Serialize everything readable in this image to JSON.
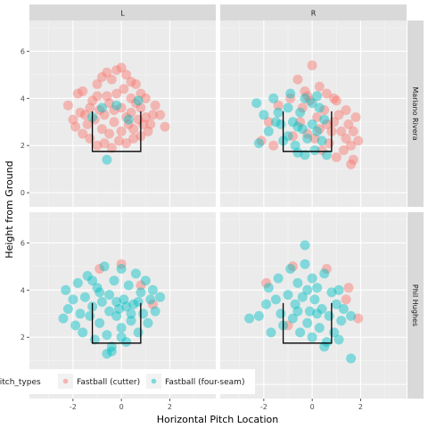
{
  "chart_data": {
    "type": "scatter",
    "facet_columns": [
      "L",
      "R"
    ],
    "facet_rows": [
      "Mariano Rivera",
      "Phil Hughes"
    ],
    "xlabel": "Horizontal Pitch Location",
    "ylabel": "Height from Ground",
    "xlim": [
      -3.8,
      3.9
    ],
    "ylim": [
      -0.6,
      7.3
    ],
    "x_ticks": [
      -2,
      0,
      2
    ],
    "y_ticks": [
      0,
      2,
      4,
      6
    ],
    "grid": true,
    "strike_zone": {
      "x": [
        -1.2,
        0.8
      ],
      "y": [
        1.75,
        3.45
      ]
    },
    "legend": {
      "title": "pitch_types",
      "position": "bottom",
      "entries": [
        {
          "label": "Fastball (cutter)",
          "color": "#F8766D"
        },
        {
          "label": "Fastball (four-seam)",
          "color": "#00BFC4"
        }
      ]
    },
    "series": [
      {
        "name": "Fastball (cutter)",
        "color": "#F8766D"
      },
      {
        "name": "Fastball (four-seam)",
        "color": "#00BFC4"
      }
    ],
    "panels": [
      {
        "col": "L",
        "row": "Mariano Rivera",
        "points": {
          "Fastball (cutter)": [
            [
              -2.2,
              3.7
            ],
            [
              -1.8,
              4.2
            ],
            [
              -1.6,
              4.3
            ],
            [
              -1.5,
              3.3
            ],
            [
              -1.2,
              3.9
            ],
            [
              -1.0,
              4.6
            ],
            [
              -0.8,
              4.9
            ],
            [
              -0.6,
              5.1
            ],
            [
              -0.4,
              4.8
            ],
            [
              -0.2,
              5.2
            ],
            [
              0.0,
              5.3
            ],
            [
              0.2,
              5.0
            ],
            [
              0.4,
              4.7
            ],
            [
              0.6,
              4.6
            ],
            [
              0.8,
              4.2
            ],
            [
              1.0,
              4.0
            ],
            [
              1.3,
              3.3
            ],
            [
              1.8,
              2.8
            ],
            [
              -1.9,
              2.8
            ],
            [
              -1.6,
              2.5
            ],
            [
              -1.3,
              2.3
            ],
            [
              -1.0,
              2.0
            ],
            [
              -0.7,
              2.1
            ],
            [
              -0.4,
              1.9
            ],
            [
              -0.1,
              2.2
            ],
            [
              0.2,
              2.1
            ],
            [
              0.5,
              2.3
            ],
            [
              0.8,
              2.4
            ],
            [
              1.1,
              2.6
            ],
            [
              -0.9,
              3.5
            ],
            [
              -0.5,
              3.8
            ],
            [
              0.0,
              3.6
            ],
            [
              0.4,
              3.4
            ],
            [
              0.7,
              3.1
            ],
            [
              -0.3,
              3.0
            ],
            [
              0.3,
              2.9
            ],
            [
              -1.4,
              2.9
            ],
            [
              1.0,
              3.2
            ],
            [
              -0.8,
              2.7
            ],
            [
              0.6,
              3.8
            ],
            [
              -0.2,
              4.2
            ],
            [
              0.1,
              4.4
            ],
            [
              -1.1,
              3.1
            ],
            [
              0.9,
              2.9
            ],
            [
              -0.5,
              2.5
            ],
            [
              0.5,
              2.7
            ],
            [
              -1.7,
              3.4
            ],
            [
              1.4,
              3.7
            ],
            [
              -0.6,
              4.1
            ],
            [
              0.2,
              3.2
            ],
            [
              -1.0,
              4.1
            ],
            [
              0.0,
              2.6
            ],
            [
              -0.3,
              3.5
            ],
            [
              0.4,
              4.0
            ],
            [
              1.2,
              2.9
            ],
            [
              -1.3,
              3.6
            ],
            [
              -0.7,
              3.3
            ],
            [
              0.8,
              3.6
            ],
            [
              -2.0,
              3.1
            ],
            [
              1.6,
              3.3
            ]
          ],
          "Fastball (four-seam)": [
            [
              -1.2,
              3.2
            ],
            [
              -0.6,
              1.4
            ],
            [
              0.7,
              3.9
            ],
            [
              -0.8,
              3.6
            ],
            [
              0.3,
              3.1
            ],
            [
              -0.2,
              3.7
            ]
          ]
        }
      },
      {
        "col": "R",
        "row": "Mariano Rivera",
        "points": {
          "Fastball (cutter)": [
            [
              -0.6,
              4.8
            ],
            [
              0.0,
              5.4
            ],
            [
              -0.3,
              4.3
            ],
            [
              0.3,
              4.5
            ],
            [
              0.6,
              4.2
            ],
            [
              1.0,
              3.9
            ],
            [
              1.4,
              3.5
            ],
            [
              1.8,
              3.2
            ],
            [
              1.7,
              2.6
            ],
            [
              1.6,
              2.0
            ],
            [
              1.7,
              1.4
            ],
            [
              1.6,
              1.2
            ],
            [
              1.3,
              1.8
            ],
            [
              1.0,
              1.5
            ],
            [
              0.7,
              2.1
            ],
            [
              0.4,
              1.8
            ],
            [
              0.1,
              2.3
            ],
            [
              -0.2,
              2.5
            ],
            [
              -0.5,
              3.0
            ],
            [
              -0.9,
              4.0
            ],
            [
              -1.4,
              3.7
            ],
            [
              -1.8,
              3.0
            ],
            [
              -2.1,
              2.2
            ],
            [
              -1.6,
              2.0
            ],
            [
              0.9,
              3.0
            ],
            [
              1.2,
              2.6
            ],
            [
              0.5,
              3.5
            ],
            [
              -0.1,
              3.9
            ],
            [
              0.8,
              2.6
            ],
            [
              1.5,
              2.9
            ],
            [
              0.2,
              3.2
            ],
            [
              -0.4,
              3.6
            ],
            [
              1.1,
              3.3
            ],
            [
              0.6,
              2.9
            ],
            [
              -0.8,
              2.4
            ],
            [
              1.4,
              2.3
            ],
            [
              0.3,
              2.7
            ],
            [
              -0.2,
              4.1
            ],
            [
              0.9,
              4.0
            ],
            [
              1.9,
              2.2
            ]
          ],
          "Fastball (four-seam)": [
            [
              -2.3,
              3.8
            ],
            [
              -2.0,
              3.3
            ],
            [
              -1.8,
              2.6
            ],
            [
              -2.2,
              2.1
            ],
            [
              -1.6,
              4.0
            ],
            [
              -1.4,
              3.4
            ],
            [
              -1.3,
              2.9
            ],
            [
              -1.0,
              3.6
            ],
            [
              -1.0,
              2.4
            ],
            [
              -0.8,
              3.0
            ],
            [
              -0.7,
              2.0
            ],
            [
              -0.6,
              1.7
            ],
            [
              -0.5,
              3.4
            ],
            [
              -0.4,
              2.7
            ],
            [
              -0.3,
              1.6
            ],
            [
              -0.2,
              2.3
            ],
            [
              0.0,
              3.8
            ],
            [
              0.0,
              2.9
            ],
            [
              0.1,
              1.8
            ],
            [
              0.2,
              2.6
            ],
            [
              0.3,
              3.6
            ],
            [
              0.4,
              2.2
            ],
            [
              0.5,
              3.1
            ],
            [
              0.6,
              1.6
            ],
            [
              -0.9,
              4.2
            ],
            [
              -1.2,
              2.2
            ],
            [
              -0.3,
              4.0
            ],
            [
              0.2,
              4.1
            ],
            [
              -1.5,
              3.0
            ],
            [
              -0.6,
              2.8
            ]
          ]
        }
      },
      {
        "col": "L",
        "row": "Phil Hughes",
        "points": {
          "Fastball (cutter)": [
            [
              0.0,
              5.1
            ],
            [
              1.3,
              3.4
            ],
            [
              0.8,
              4.2
            ],
            [
              -0.9,
              4.9
            ]
          ],
          "Fastball (four-seam)": [
            [
              -2.4,
              2.8
            ],
            [
              -2.3,
              4.0
            ],
            [
              -2.2,
              3.2
            ],
            [
              -2.0,
              3.6
            ],
            [
              -1.9,
              2.5
            ],
            [
              -1.8,
              4.3
            ],
            [
              -1.6,
              2.2
            ],
            [
              -1.5,
              3.7
            ],
            [
              -1.4,
              4.6
            ],
            [
              -1.3,
              2.9
            ],
            [
              -1.2,
              3.3
            ],
            [
              -1.1,
              1.9
            ],
            [
              -1.0,
              4.1
            ],
            [
              -0.9,
              2.6
            ],
            [
              -0.8,
              3.5
            ],
            [
              -0.7,
              5.0
            ],
            [
              -0.6,
              2.1
            ],
            [
              -0.5,
              3.8
            ],
            [
              -0.4,
              1.6
            ],
            [
              -0.3,
              4.4
            ],
            [
              -0.2,
              2.9
            ],
            [
              -0.1,
              3.2
            ],
            [
              0.0,
              4.9
            ],
            [
              0.0,
              2.4
            ],
            [
              0.1,
              3.6
            ],
            [
              0.2,
              1.8
            ],
            [
              0.3,
              4.2
            ],
            [
              0.4,
              2.7
            ],
            [
              0.5,
              3.4
            ],
            [
              0.6,
              4.7
            ],
            [
              0.7,
              2.2
            ],
            [
              0.8,
              3.9
            ],
            [
              0.9,
              3.0
            ],
            [
              1.0,
              4.4
            ],
            [
              1.1,
              2.6
            ],
            [
              1.2,
              3.6
            ],
            [
              1.3,
              4.0
            ],
            [
              1.4,
              3.1
            ],
            [
              1.6,
              3.7
            ],
            [
              -0.4,
              1.4
            ],
            [
              -0.6,
              1.3
            ],
            [
              -1.7,
              3.0
            ],
            [
              0.4,
              3.0
            ],
            [
              -0.5,
              3.1
            ],
            [
              -0.2,
              3.5
            ],
            [
              0.2,
              3.3
            ],
            [
              -0.9,
              3.9
            ],
            [
              0.7,
              3.5
            ],
            [
              -1.2,
              4.4
            ],
            [
              0.0,
              2.0
            ]
          ]
        }
      },
      {
        "col": "R",
        "row": "Phil Hughes",
        "points": {
          "Fastball (cutter)": [
            [
              -1.9,
              4.3
            ],
            [
              0.6,
              4.9
            ],
            [
              1.4,
              3.6
            ],
            [
              1.5,
              4.1
            ],
            [
              1.9,
              2.8
            ],
            [
              -0.8,
              5.0
            ],
            [
              -1.0,
              2.5
            ]
          ],
          "Fastball (four-seam)": [
            [
              -2.6,
              2.8
            ],
            [
              -2.2,
              2.9
            ],
            [
              -1.9,
              3.4
            ],
            [
              -1.8,
              4.1
            ],
            [
              -1.7,
              2.2
            ],
            [
              -1.5,
              3.6
            ],
            [
              -1.4,
              4.5
            ],
            [
              -1.3,
              3.0
            ],
            [
              -1.2,
              2.5
            ],
            [
              -1.0,
              3.8
            ],
            [
              -0.9,
              4.9
            ],
            [
              -0.8,
              2.8
            ],
            [
              -0.7,
              3.4
            ],
            [
              -0.6,
              4.3
            ],
            [
              -0.5,
              2.2
            ],
            [
              -0.4,
              3.7
            ],
            [
              -0.3,
              5.1
            ],
            [
              -0.2,
              2.6
            ],
            [
              -0.1,
              3.1
            ],
            [
              0.0,
              4.5
            ],
            [
              0.0,
              2.0
            ],
            [
              0.1,
              3.6
            ],
            [
              0.2,
              4.1
            ],
            [
              0.3,
              2.4
            ],
            [
              0.4,
              3.2
            ],
            [
              0.5,
              4.7
            ],
            [
              0.6,
              1.8
            ],
            [
              0.7,
              2.9
            ],
            [
              0.8,
              3.9
            ],
            [
              0.9,
              2.2
            ],
            [
              1.0,
              3.4
            ],
            [
              1.1,
              4.0
            ],
            [
              1.2,
              2.7
            ],
            [
              1.3,
              3.2
            ],
            [
              1.1,
              1.9
            ],
            [
              1.6,
              2.9
            ],
            [
              -0.3,
              5.9
            ],
            [
              1.6,
              1.1
            ],
            [
              0.5,
              1.6
            ],
            [
              -0.6,
              3.1
            ],
            [
              0.2,
              3.0
            ],
            [
              -0.2,
              4.0
            ]
          ]
        }
      }
    ]
  }
}
